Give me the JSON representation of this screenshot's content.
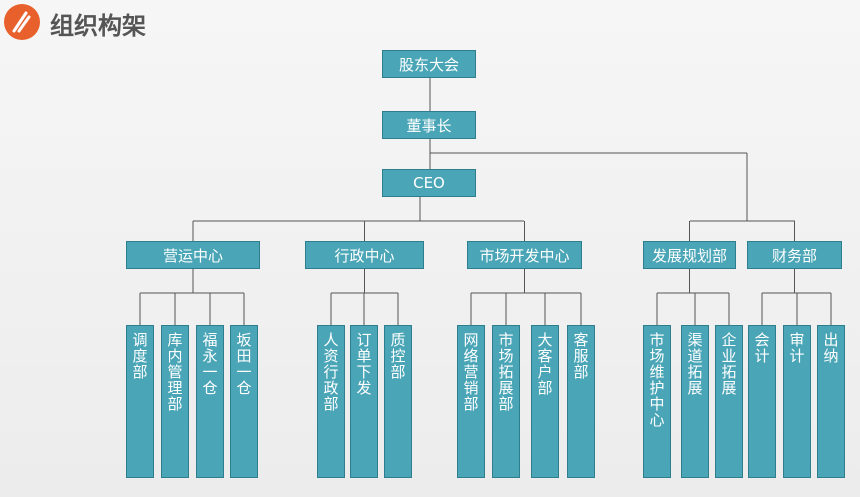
{
  "title": "组织构架",
  "top": [
    "股东大会",
    "董事长",
    "CEO"
  ],
  "departments": [
    {
      "label": "营运中心",
      "children": [
        "调度部",
        "库内管理部",
        "福永一仓",
        "坂田一仓"
      ]
    },
    {
      "label": "行政中心",
      "children": [
        "人资行政部",
        "订单下发",
        "质控部"
      ]
    },
    {
      "label": "市场开发中心",
      "children": [
        "网络营销部",
        "市场拓展部",
        "大客户部",
        "客服部"
      ]
    },
    {
      "label": "发展规划部",
      "children": [
        "市场维护中心",
        "渠道拓展",
        "企业拓展"
      ]
    },
    {
      "label": "财务部",
      "children": [
        "会计",
        "审计",
        "出纳"
      ]
    }
  ]
}
